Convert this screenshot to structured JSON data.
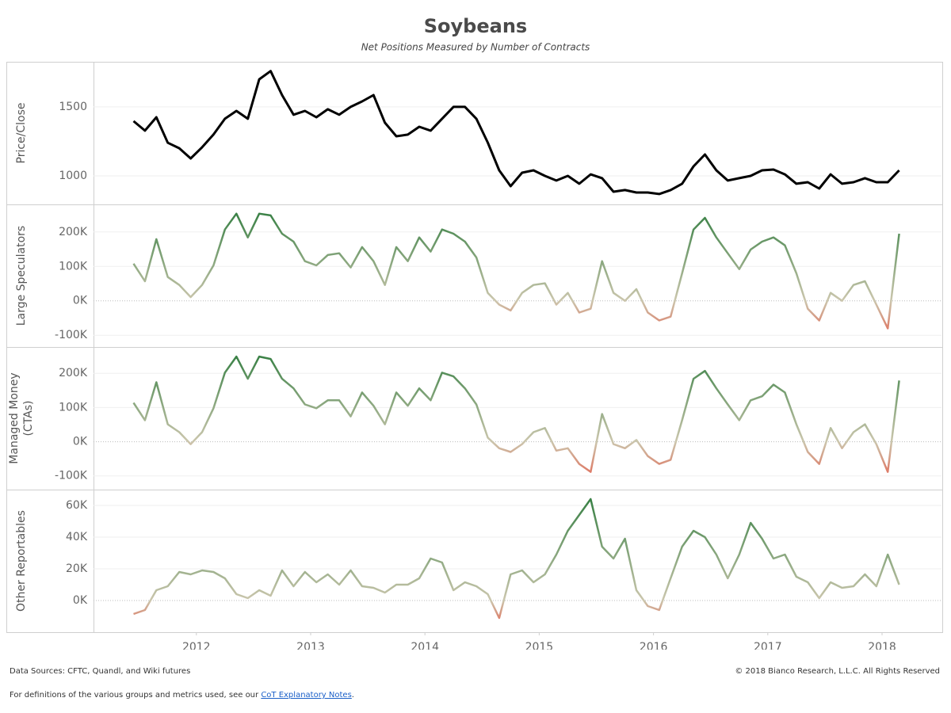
{
  "header": {
    "title": "Soybeans",
    "subtitle": "Net Positions Measured by Number of Contracts"
  },
  "chart_data": [
    {
      "type": "line",
      "ylabel": "Price/Close",
      "color": "#000000",
      "x": [
        2011.45,
        2011.55,
        2011.65,
        2011.75,
        2011.85,
        2011.95,
        2012.05,
        2012.15,
        2012.25,
        2012.35,
        2012.45,
        2012.55,
        2012.65,
        2012.75,
        2012.85,
        2012.95,
        2013.05,
        2013.15,
        2013.25,
        2013.35,
        2013.45,
        2013.55,
        2013.65,
        2013.75,
        2013.85,
        2013.95,
        2014.05,
        2014.15,
        2014.25,
        2014.35,
        2014.45,
        2014.55,
        2014.65,
        2014.75,
        2014.85,
        2014.95,
        2015.05,
        2015.15,
        2015.25,
        2015.35,
        2015.45,
        2015.55,
        2015.65,
        2015.75,
        2015.85,
        2015.95,
        2016.05,
        2016.15,
        2016.25,
        2016.35,
        2016.45,
        2016.55,
        2016.65,
        2016.75,
        2016.85,
        2016.95,
        2017.05,
        2017.15,
        2017.25,
        2017.35,
        2017.45,
        2017.55,
        2017.65,
        2017.75,
        2017.85,
        2017.95,
        2018.05,
        2018.15
      ],
      "values": [
        1397,
        1328,
        1425,
        1240,
        1200,
        1126,
        1207,
        1300,
        1414,
        1471,
        1414,
        1700,
        1760,
        1586,
        1443,
        1471,
        1425,
        1483,
        1443,
        1500,
        1540,
        1586,
        1385,
        1287,
        1299,
        1356,
        1328,
        1414,
        1500,
        1500,
        1414,
        1241,
        1040,
        925,
        1023,
        1040,
        1000,
        966,
        1000,
        943,
        1011,
        983,
        885,
        897,
        879,
        879,
        868,
        897,
        943,
        1069,
        1155,
        1040,
        966,
        983,
        1000,
        1040,
        1046,
        1011,
        943,
        954,
        908,
        1011,
        943,
        954,
        983,
        954,
        954,
        1040
      ],
      "xlim": [
        2011.1,
        2018.52
      ],
      "ylim": [
        793,
        1827
      ],
      "yticks": [
        1000,
        1500
      ],
      "grid": true
    },
    {
      "type": "line",
      "ylabel": "Large Speculators",
      "colors": {
        "positive": "#2b7a3b",
        "zero": "#cbc6ad",
        "negative": "#e8513f"
      },
      "x": [
        2011.45,
        2011.55,
        2011.65,
        2011.75,
        2011.85,
        2011.95,
        2012.05,
        2012.15,
        2012.25,
        2012.35,
        2012.45,
        2012.55,
        2012.65,
        2012.75,
        2012.85,
        2012.95,
        2013.05,
        2013.15,
        2013.25,
        2013.35,
        2013.45,
        2013.55,
        2013.65,
        2013.75,
        2013.85,
        2013.95,
        2014.05,
        2014.15,
        2014.25,
        2014.35,
        2014.45,
        2014.55,
        2014.65,
        2014.75,
        2014.85,
        2014.95,
        2015.05,
        2015.15,
        2015.25,
        2015.35,
        2015.45,
        2015.55,
        2015.65,
        2015.75,
        2015.85,
        2015.95,
        2016.05,
        2016.15,
        2016.25,
        2016.35,
        2016.45,
        2016.55,
        2016.65,
        2016.75,
        2016.85,
        2016.95,
        2017.05,
        2017.15,
        2017.25,
        2017.35,
        2017.45,
        2017.55,
        2017.65,
        2017.75,
        2017.85,
        2017.95,
        2018.05,
        2018.15
      ],
      "values": [
        108000,
        57000,
        179000,
        69000,
        46000,
        11000,
        46000,
        103000,
        207000,
        253000,
        184000,
        253000,
        248000,
        195000,
        172000,
        115000,
        103000,
        133000,
        138000,
        97000,
        156000,
        115000,
        46000,
        156000,
        115000,
        184000,
        143000,
        207000,
        195000,
        172000,
        126000,
        23000,
        -11000,
        -28000,
        23000,
        46000,
        51000,
        -11000,
        23000,
        -34000,
        -23000,
        115000,
        23000,
        0,
        34000,
        -34000,
        -57000,
        -46000,
        80000,
        207000,
        241000,
        184000,
        138000,
        92000,
        149000,
        172000,
        184000,
        161000,
        80000,
        -23000,
        -57000,
        23000,
        0,
        46000,
        57000,
        -11000,
        -80000,
        195000
      ],
      "xlim": [
        2011.1,
        2018.52
      ],
      "ylim": [
        -134000,
        280000
      ],
      "yticks": [
        {
          "value": -100000,
          "label": "-100K"
        },
        {
          "value": 0,
          "label": "0K"
        },
        {
          "value": 100000,
          "label": "100K"
        },
        {
          "value": 200000,
          "label": "200K"
        }
      ],
      "grid": true
    },
    {
      "type": "line",
      "ylabel": [
        "Managed Money",
        "(CTAs)"
      ],
      "colors": {
        "positive": "#2b7a3b",
        "zero": "#cbc6ad",
        "negative": "#e8513f"
      },
      "x": [
        2011.45,
        2011.55,
        2011.65,
        2011.75,
        2011.85,
        2011.95,
        2012.05,
        2012.15,
        2012.25,
        2012.35,
        2012.45,
        2012.55,
        2012.65,
        2012.75,
        2012.85,
        2012.95,
        2013.05,
        2013.15,
        2013.25,
        2013.35,
        2013.45,
        2013.55,
        2013.65,
        2013.75,
        2013.85,
        2013.95,
        2014.05,
        2014.15,
        2014.25,
        2014.35,
        2014.45,
        2014.55,
        2014.65,
        2014.75,
        2014.85,
        2014.95,
        2015.05,
        2015.15,
        2015.25,
        2015.35,
        2015.45,
        2015.55,
        2015.65,
        2015.75,
        2015.85,
        2015.95,
        2016.05,
        2016.15,
        2016.25,
        2016.35,
        2016.45,
        2016.55,
        2016.65,
        2016.75,
        2016.85,
        2016.95,
        2017.05,
        2017.15,
        2017.25,
        2017.35,
        2017.45,
        2017.55,
        2017.65,
        2017.75,
        2017.85,
        2017.95,
        2018.05,
        2018.15
      ],
      "values": [
        114000,
        63000,
        174000,
        51000,
        28000,
        -7000,
        28000,
        98000,
        202000,
        249000,
        184000,
        249000,
        242000,
        184000,
        156000,
        109000,
        98000,
        121000,
        121000,
        74000,
        144000,
        105000,
        51000,
        144000,
        105000,
        156000,
        121000,
        202000,
        191000,
        156000,
        109000,
        12000,
        -19000,
        -30000,
        -7000,
        28000,
        40000,
        -26000,
        -19000,
        -65000,
        -88000,
        81000,
        -7000,
        -19000,
        5000,
        -42000,
        -65000,
        -53000,
        63000,
        184000,
        207000,
        156000,
        109000,
        63000,
        121000,
        133000,
        167000,
        144000,
        51000,
        -30000,
        -65000,
        40000,
        -19000,
        28000,
        51000,
        -7000,
        -88000,
        179000
      ],
      "xlim": [
        2011.1,
        2018.52
      ],
      "ylim": [
        -140000,
        277000
      ],
      "yticks": [
        {
          "value": -100000,
          "label": "-100K"
        },
        {
          "value": 0,
          "label": "0K"
        },
        {
          "value": 100000,
          "label": "100K"
        },
        {
          "value": 200000,
          "label": "200K"
        }
      ],
      "grid": true
    },
    {
      "type": "line",
      "ylabel": "Other Reportables",
      "colors": {
        "positive": "#2b7a3b",
        "zero": "#cbc6ad",
        "negative": "#e8513f"
      },
      "x": [
        2011.45,
        2011.55,
        2011.65,
        2011.75,
        2011.85,
        2011.95,
        2012.05,
        2012.15,
        2012.25,
        2012.35,
        2012.45,
        2012.55,
        2012.65,
        2012.75,
        2012.85,
        2012.95,
        2013.05,
        2013.15,
        2013.25,
        2013.35,
        2013.45,
        2013.55,
        2013.65,
        2013.75,
        2013.85,
        2013.95,
        2014.05,
        2014.15,
        2014.25,
        2014.35,
        2014.45,
        2014.55,
        2014.65,
        2014.75,
        2014.85,
        2014.95,
        2015.05,
        2015.15,
        2015.25,
        2015.35,
        2015.45,
        2015.55,
        2015.65,
        2015.75,
        2015.85,
        2015.95,
        2016.05,
        2016.15,
        2016.25,
        2016.35,
        2016.45,
        2016.55,
        2016.65,
        2016.75,
        2016.85,
        2016.95,
        2017.05,
        2017.15,
        2017.25,
        2017.35,
        2017.45,
        2017.55,
        2017.65,
        2017.75,
        2017.85,
        2017.95,
        2018.05,
        2018.15
      ],
      "values": [
        -8500,
        -6000,
        6500,
        9000,
        18000,
        16500,
        19000,
        18000,
        14000,
        4000,
        1500,
        6500,
        3000,
        19000,
        9000,
        18000,
        11500,
        16500,
        10000,
        19000,
        9000,
        8000,
        5000,
        10000,
        10000,
        14000,
        26500,
        24000,
        6500,
        11500,
        9000,
        4000,
        -11000,
        16500,
        19000,
        11500,
        16500,
        29000,
        44000,
        54000,
        64000,
        34000,
        26500,
        39000,
        6500,
        -3500,
        -6000,
        14000,
        34000,
        44000,
        40000,
        29000,
        14000,
        29000,
        49000,
        39000,
        26500,
        29000,
        15000,
        11500,
        1500,
        11500,
        8000,
        9000,
        16500,
        9000,
        29000,
        10000
      ],
      "xlim": [
        2011.1,
        2018.52
      ],
      "ylim": [
        -20000,
        70000
      ],
      "yticks": [
        {
          "value": 0,
          "label": "0K"
        },
        {
          "value": 20000,
          "label": "20K"
        },
        {
          "value": 40000,
          "label": "40K"
        },
        {
          "value": 60000,
          "label": "60K"
        }
      ],
      "xticks": [
        2012,
        2013,
        2014,
        2015,
        2016,
        2017,
        2018
      ],
      "grid": true
    }
  ],
  "footer": {
    "sources": "Data Sources: CFTC, Quandl, and Wiki futures",
    "copyright": "© 2018 Bianco Research, L.L.C. All Rights Reserved",
    "note": "For definitions of the various groups and metrics used, see our ",
    "link": "CoT Explanatory Notes",
    "end": "."
  }
}
